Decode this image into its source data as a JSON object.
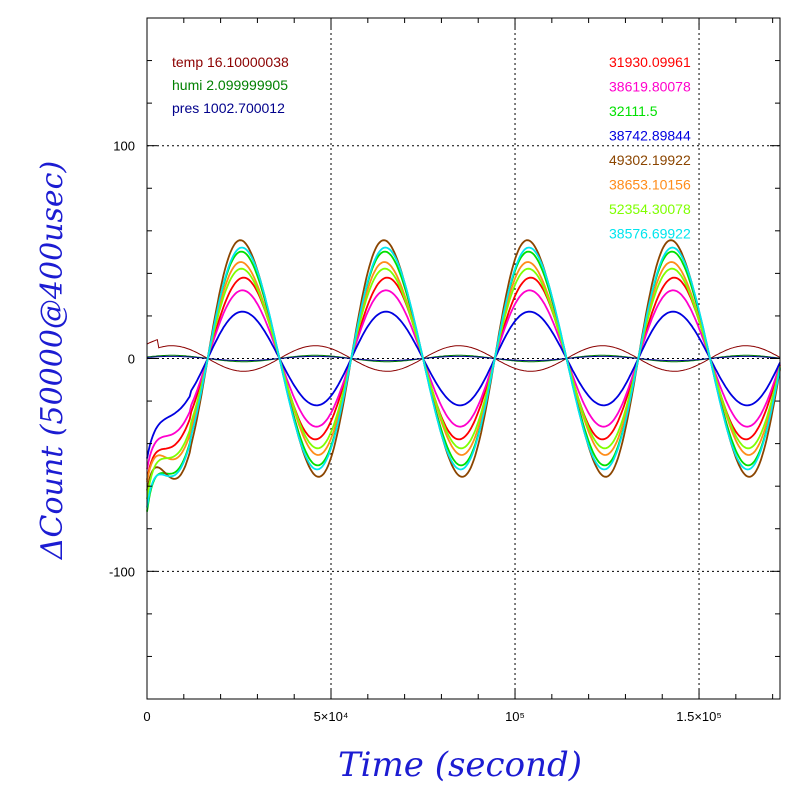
{
  "chart_data": {
    "type": "line",
    "xlabel": "Time (second)",
    "ylabel": "ΔCount (50000@400usec)",
    "xlim": [
      0,
      172000
    ],
    "ylim": [
      -160,
      160
    ],
    "grid": true,
    "x_ticks": [
      {
        "value": 0,
        "label": "0"
      },
      {
        "value": 50000,
        "label": "5×10⁴"
      },
      {
        "value": 100000,
        "label": "10⁵"
      },
      {
        "value": 150000,
        "label": "1.5×10⁵"
      }
    ],
    "y_ticks": [
      {
        "value": -100,
        "label": "-100"
      },
      {
        "value": 0,
        "label": "0"
      },
      {
        "value": 100,
        "label": "100"
      }
    ],
    "env_legend": [
      {
        "text": "temp 16.10000038",
        "color": "#8b0000"
      },
      {
        "text": "humi 2.099999905",
        "color": "#008000"
      },
      {
        "text": "pres 1002.700012",
        "color": "#00008b"
      }
    ],
    "series": [
      {
        "name": "31930.09961",
        "color": "#ff0000",
        "amplitude": 38,
        "base": -57,
        "smoothness": 1.0
      },
      {
        "name": "38619.80078",
        "color": "#ff00cc",
        "amplitude": 32,
        "base": -52,
        "smoothness": 0.9
      },
      {
        "name": "32111.5",
        "color": "#00e000",
        "amplitude": 50,
        "base": -72,
        "smoothness": 0.8
      },
      {
        "name": "38742.89844",
        "color": "#0000e0",
        "amplitude": 22,
        "base": -47,
        "smoothness": 0.9
      },
      {
        "name": "49302.19922",
        "color": "#8b4500",
        "amplitude": 55,
        "base": -62,
        "smoothness": 0.7
      },
      {
        "name": "38653.10156",
        "color": "#ff8c1a",
        "amplitude": 45,
        "base": -58,
        "smoothness": 0.75
      },
      {
        "name": "52354.30078",
        "color": "#7fff00",
        "amplitude": 42,
        "base": -66,
        "smoothness": 0.8
      },
      {
        "name": "38576.69922",
        "color": "#00e5ee",
        "amplitude": 52,
        "base": -70,
        "smoothness": 0.85
      }
    ],
    "period": 39000,
    "phase_zero": 16500,
    "env_curves": [
      {
        "name": "temp",
        "color": "#8b0000",
        "amplitude": 6
      },
      {
        "name": "humi",
        "color": "#008000",
        "amplitude": 1.5
      },
      {
        "name": "pres",
        "color": "#00008b",
        "amplitude": 1
      }
    ]
  }
}
